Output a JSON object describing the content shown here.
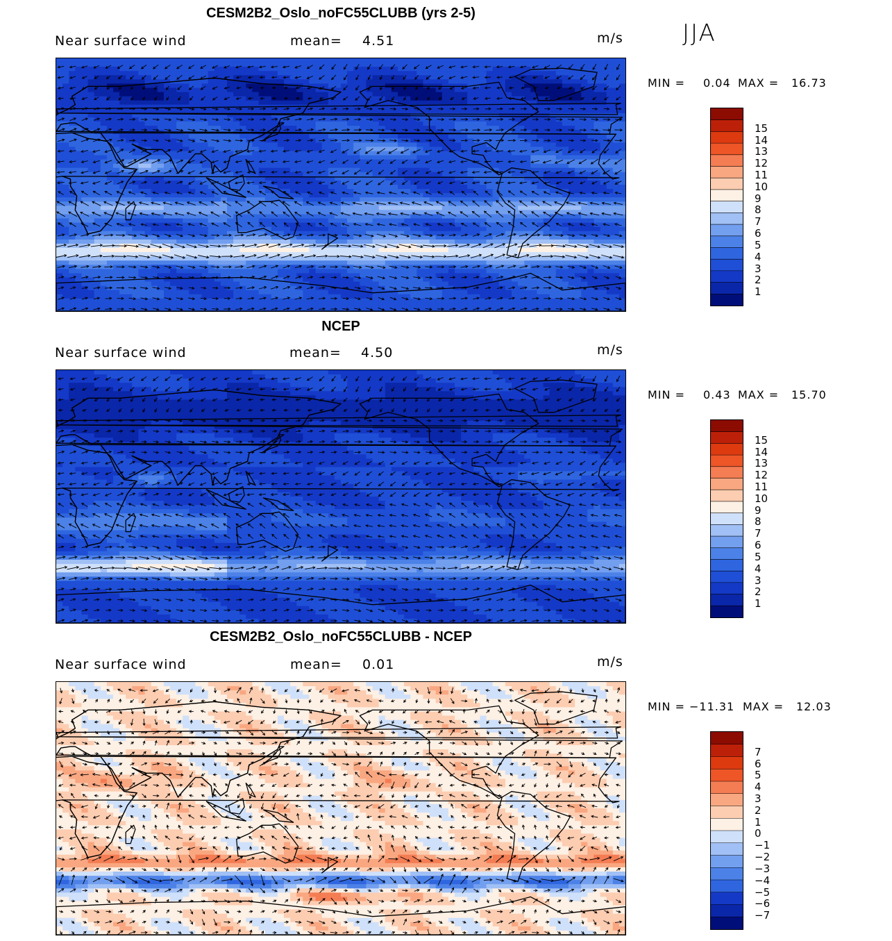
{
  "season": "JJA",
  "colors": {
    "abs_scale": [
      "#000e7a",
      "#0a26a9",
      "#1439c7",
      "#1f4fd6",
      "#2f66e0",
      "#4c82e8",
      "#739fef",
      "#a1c0f5",
      "#cfe0fa",
      "#fdf0e4",
      "#fdcdb1",
      "#f9a781",
      "#f47d54",
      "#ee5627",
      "#de3a10",
      "#bd2008",
      "#8c0c02"
    ],
    "diff_scale": [
      "#000e7a",
      "#0a26a9",
      "#1439c7",
      "#2f66e0",
      "#4c82e8",
      "#739fef",
      "#a1c0f5",
      "#cfe0fa",
      "#fdf0e4",
      "#fdcdb1",
      "#f9a781",
      "#f47d54",
      "#ee5627",
      "#de3a10",
      "#bd2008",
      "#8c0c02"
    ]
  },
  "panels": [
    {
      "title": "CESM2B2_Oslo_noFC55CLUBB (yrs 2-5)",
      "variable": "Near surface wind",
      "mean_label": "mean=",
      "mean_value": "4.51",
      "units": "m/s",
      "min_label": "MIN =",
      "min_value": "0.04",
      "max_label": "MAX =",
      "max_value": "16.73",
      "colorbar": [
        "15",
        "14",
        "13",
        "12",
        "11",
        "10",
        "9",
        "8",
        "7",
        "6",
        "5",
        "4",
        "3",
        "2",
        "1"
      ]
    },
    {
      "title": "NCEP",
      "variable": "Near surface wind",
      "mean_label": "mean=",
      "mean_value": "4.50",
      "units": "m/s",
      "min_label": "MIN =",
      "min_value": "0.43",
      "max_label": "MAX =",
      "max_value": "15.70",
      "colorbar": [
        "15",
        "14",
        "13",
        "12",
        "11",
        "10",
        "9",
        "8",
        "7",
        "6",
        "5",
        "4",
        "3",
        "2",
        "1"
      ]
    },
    {
      "title": "CESM2B2_Oslo_noFC55CLUBB - NCEP",
      "variable": "Near surface wind",
      "mean_label": "mean=",
      "mean_value": "0.01",
      "units": "m/s",
      "min_label": "MIN =",
      "min_value": "−11.31",
      "max_label": "MAX =",
      "max_value": "12.03",
      "colorbar": [
        "7",
        "6",
        "5",
        "4",
        "3",
        "2",
        "1",
        "0",
        "−1",
        "−2",
        "−3",
        "−4",
        "−5",
        "−6",
        "−7"
      ]
    }
  ],
  "chart_data": [
    {
      "type": "heatmap",
      "title": "CESM2B2_Oslo_noFC55CLUBB (yrs 2-5)",
      "subtitle": "Near surface wind",
      "units": "m/s",
      "season": "JJA",
      "mean": 4.51,
      "min": 0.04,
      "max": 16.73,
      "colorbar_levels": [
        1,
        2,
        3,
        4,
        5,
        6,
        7,
        8,
        9,
        10,
        11,
        12,
        13,
        14,
        15
      ],
      "overlay": "wind vectors",
      "domain": "global lon 0-360, lat -90 to 90"
    },
    {
      "type": "heatmap",
      "title": "NCEP",
      "subtitle": "Near surface wind",
      "units": "m/s",
      "season": "JJA",
      "mean": 4.5,
      "min": 0.43,
      "max": 15.7,
      "colorbar_levels": [
        1,
        2,
        3,
        4,
        5,
        6,
        7,
        8,
        9,
        10,
        11,
        12,
        13,
        14,
        15
      ],
      "overlay": "wind vectors",
      "domain": "global lon 0-360, lat -90 to 90"
    },
    {
      "type": "heatmap",
      "title": "CESM2B2_Oslo_noFC55CLUBB - NCEP",
      "subtitle": "Near surface wind",
      "units": "m/s",
      "season": "JJA",
      "mean": 0.01,
      "min": -11.31,
      "max": 12.03,
      "colorbar_levels": [
        -7,
        -6,
        -5,
        -4,
        -3,
        -2,
        -1,
        0,
        1,
        2,
        3,
        4,
        5,
        6,
        7
      ],
      "overlay": "wind vectors",
      "domain": "global lon 0-360, lat -90 to 90"
    }
  ]
}
